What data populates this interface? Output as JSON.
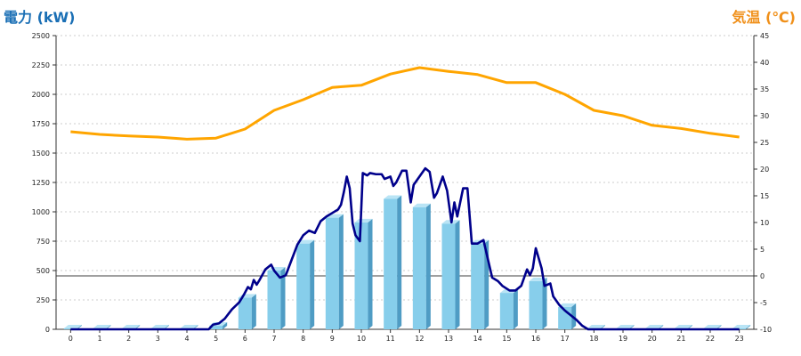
{
  "colors": {
    "left_title": "#1a6fb5",
    "right_title": "#f0901a",
    "bars": "#87ceeb",
    "bars_side": "#4f9cc4",
    "bars_top": "#b9e4f5",
    "power_line": "#00008b",
    "temp_line": "#ffa500",
    "grid": "#cccccc"
  },
  "chart_data": {
    "type": "bar",
    "title_left": "電力 (kW)",
    "title_right": "気温 (℃)",
    "categories": [
      "0",
      "1",
      "2",
      "3",
      "4",
      "5",
      "6",
      "7",
      "8",
      "9",
      "10",
      "11",
      "12",
      "13",
      "14",
      "15",
      "16",
      "17",
      "18",
      "19",
      "20",
      "21",
      "22",
      "23"
    ],
    "y_left": {
      "min": 0,
      "max": 2500,
      "ticks": [
        0,
        250,
        500,
        750,
        1000,
        1250,
        1500,
        1750,
        2000,
        2250,
        2500
      ]
    },
    "y_right": {
      "min": -10,
      "max": 45,
      "ticks": [
        -10,
        -5,
        0,
        5,
        10,
        15,
        20,
        25,
        30,
        35,
        40,
        45
      ]
    },
    "grid": true,
    "zero_line_right": 0,
    "series": [
      {
        "type": "bar",
        "axis": "left",
        "values": [
          0,
          0,
          0,
          0,
          0,
          30,
          270,
          500,
          730,
          950,
          910,
          1110,
          1040,
          900,
          730,
          310,
          410,
          190,
          0,
          0,
          0,
          0,
          0,
          0
        ]
      },
      {
        "type": "line",
        "axis": "left",
        "points": [
          [
            0,
            0
          ],
          [
            1,
            0
          ],
          [
            2,
            0
          ],
          [
            3,
            0
          ],
          [
            4,
            0
          ],
          [
            4.75,
            0
          ],
          [
            4.9,
            40
          ],
          [
            5.1,
            50
          ],
          [
            5.3,
            90
          ],
          [
            5.55,
            170
          ],
          [
            5.8,
            230
          ],
          [
            5.95,
            290
          ],
          [
            6.1,
            360
          ],
          [
            6.2,
            340
          ],
          [
            6.3,
            420
          ],
          [
            6.4,
            380
          ],
          [
            6.5,
            420
          ],
          [
            6.7,
            510
          ],
          [
            6.9,
            550
          ],
          [
            7.0,
            500
          ],
          [
            7.2,
            440
          ],
          [
            7.4,
            460
          ],
          [
            7.6,
            590
          ],
          [
            7.8,
            720
          ],
          [
            8.0,
            800
          ],
          [
            8.2,
            840
          ],
          [
            8.4,
            820
          ],
          [
            8.6,
            920
          ],
          [
            8.8,
            960
          ],
          [
            9.0,
            990
          ],
          [
            9.2,
            1020
          ],
          [
            9.3,
            1060
          ],
          [
            9.4,
            1170
          ],
          [
            9.5,
            1300
          ],
          [
            9.6,
            1200
          ],
          [
            9.7,
            900
          ],
          [
            9.8,
            800
          ],
          [
            9.95,
            750
          ],
          [
            10.05,
            1330
          ],
          [
            10.2,
            1310
          ],
          [
            10.3,
            1330
          ],
          [
            10.5,
            1320
          ],
          [
            10.7,
            1320
          ],
          [
            10.8,
            1280
          ],
          [
            11.0,
            1300
          ],
          [
            11.1,
            1220
          ],
          [
            11.2,
            1250
          ],
          [
            11.4,
            1350
          ],
          [
            11.55,
            1350
          ],
          [
            11.7,
            1080
          ],
          [
            11.8,
            1230
          ],
          [
            12.0,
            1300
          ],
          [
            12.2,
            1370
          ],
          [
            12.35,
            1340
          ],
          [
            12.5,
            1120
          ],
          [
            12.6,
            1160
          ],
          [
            12.8,
            1300
          ],
          [
            12.95,
            1180
          ],
          [
            13.1,
            910
          ],
          [
            13.2,
            1080
          ],
          [
            13.3,
            960
          ],
          [
            13.5,
            1200
          ],
          [
            13.65,
            1200
          ],
          [
            13.8,
            730
          ],
          [
            14.0,
            730
          ],
          [
            14.2,
            760
          ],
          [
            14.35,
            600
          ],
          [
            14.5,
            440
          ],
          [
            14.7,
            410
          ],
          [
            14.85,
            370
          ],
          [
            15.1,
            330
          ],
          [
            15.3,
            330
          ],
          [
            15.5,
            370
          ],
          [
            15.7,
            510
          ],
          [
            15.8,
            460
          ],
          [
            15.9,
            520
          ],
          [
            16.0,
            690
          ],
          [
            16.2,
            520
          ],
          [
            16.3,
            370
          ],
          [
            16.5,
            390
          ],
          [
            16.6,
            280
          ],
          [
            16.8,
            210
          ],
          [
            17.0,
            160
          ],
          [
            17.2,
            120
          ],
          [
            17.4,
            80
          ],
          [
            17.6,
            30
          ],
          [
            17.8,
            0
          ],
          [
            18,
            0
          ],
          [
            19,
            0
          ],
          [
            20,
            0
          ],
          [
            21,
            0
          ],
          [
            22,
            0
          ],
          [
            23,
            0
          ]
        ]
      },
      {
        "type": "line",
        "axis": "right",
        "values": [
          27,
          26.5,
          26.2,
          26,
          25.6,
          25.8,
          27.5,
          31,
          33,
          35.3,
          35.7,
          37.8,
          39,
          38.3,
          37.7,
          36.2,
          36.2,
          34,
          31,
          30,
          28.2,
          27.6,
          26.7,
          26
        ]
      }
    ]
  }
}
